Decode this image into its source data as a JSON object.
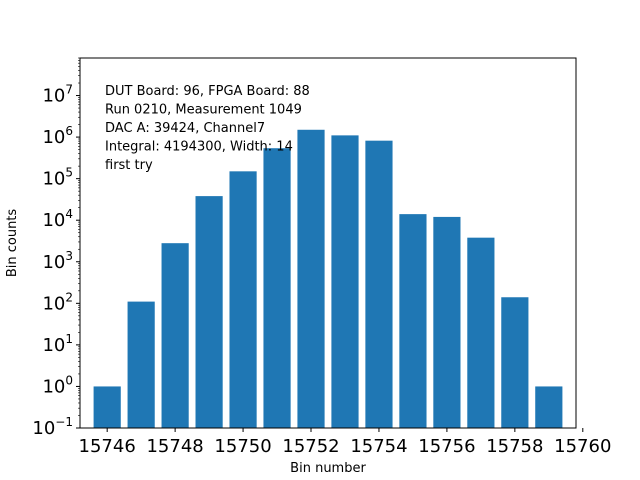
{
  "chart_data": {
    "type": "bar",
    "x": [
      15746,
      15747,
      15748,
      15749,
      15750,
      15751,
      15752,
      15753,
      15754,
      15755,
      15756,
      15757,
      15758,
      15759
    ],
    "values": [
      1,
      110,
      2800,
      38000,
      150000,
      540000,
      1500000,
      1100000,
      820000,
      14000,
      12000,
      3800,
      140,
      1
    ],
    "xlabel": "Bin number",
    "ylabel": "Bin counts",
    "xlim": [
      15745.2,
      15759.8
    ],
    "ylim": [
      0.1,
      80000000
    ],
    "yscale": "log",
    "xticks": [
      "15746",
      "15748",
      "15750",
      "15752",
      "15754",
      "15756",
      "15758",
      "15760"
    ],
    "yticks_exponents": [
      "-1",
      "0",
      "1",
      "2",
      "3",
      "4",
      "5",
      "6",
      "7"
    ],
    "yticks_base": "10",
    "grid": false,
    "bar_color": "#1f77b4",
    "annotation_lines": [
      "DUT Board: 96, FPGA Board: 88",
      "Run 0210, Measurement 1049",
      "DAC A: 39424, Channel7",
      "Integral: 4194300, Width: 14",
      "first try"
    ]
  }
}
